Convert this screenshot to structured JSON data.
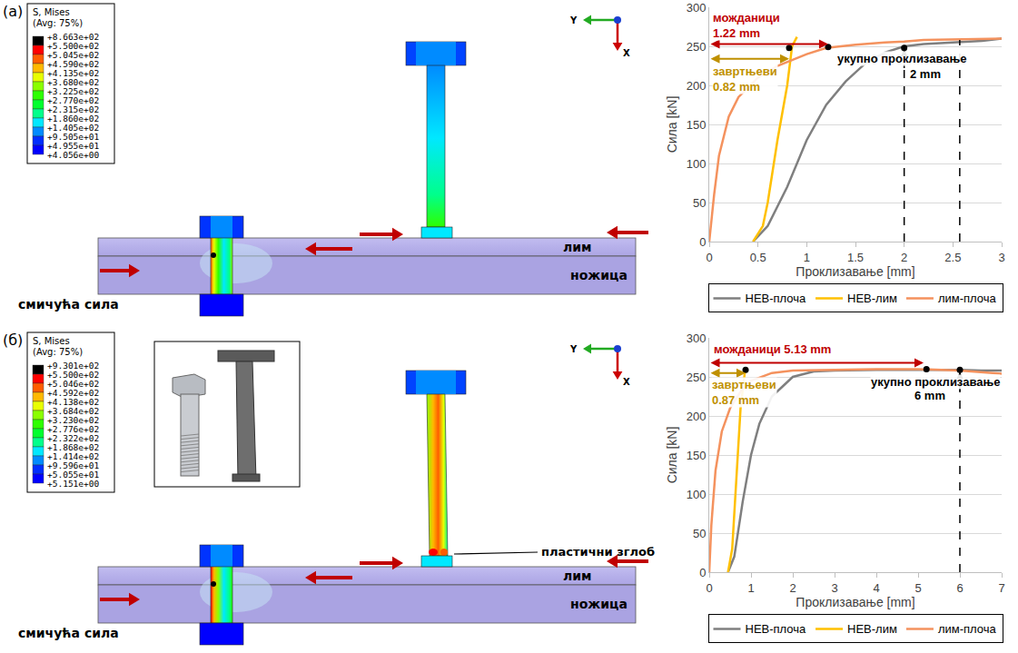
{
  "chart_data": [
    {
      "type": "line",
      "xlabel": "Проклизавање [mm]",
      "ylabel": "Сила [kN]",
      "xlim": [
        0,
        3
      ],
      "ylim": [
        0,
        300
      ],
      "xticks": [
        0,
        0.5,
        1,
        1.5,
        2,
        2.5,
        3
      ],
      "yticks": [
        0,
        50,
        100,
        150,
        200,
        250,
        300
      ],
      "grid": "y",
      "legend": "bottom",
      "series": [
        {
          "name": "НЕВ-плоча",
          "color": "#7f7f7f",
          "x": [
            0.45,
            0.6,
            0.8,
            1.0,
            1.2,
            1.4,
            1.6,
            1.8,
            2.0,
            2.2,
            2.5,
            2.8,
            3.0
          ],
          "values": [
            0,
            20,
            70,
            130,
            175,
            205,
            228,
            242,
            250,
            253,
            255,
            257,
            260
          ]
        },
        {
          "name": "НЕВ-лим",
          "color": "#ffc000",
          "x": [
            0.45,
            0.55,
            0.6,
            0.7,
            0.8,
            0.85,
            0.9
          ],
          "values": [
            0,
            20,
            50,
            130,
            200,
            250,
            262
          ]
        },
        {
          "name": "лим-плоча",
          "color": "#f4925e",
          "x": [
            0,
            0.05,
            0.1,
            0.2,
            0.3,
            0.5,
            0.7,
            1.0,
            1.2,
            1.5,
            1.8,
            2.0,
            2.2,
            2.5,
            3.0
          ],
          "values": [
            0,
            60,
            110,
            160,
            185,
            210,
            225,
            240,
            248,
            252,
            255,
            256,
            258,
            259,
            260
          ]
        }
      ],
      "points": {
        "x": [
          0.82,
          1.22,
          2
        ],
        "values": [
          248,
          249,
          248
        ],
        "color": "#000000",
        "marker": "circle"
      },
      "dimension_lines": [
        {
          "x0": 0,
          "x1": 1.22,
          "y": 253,
          "color": "#c00000"
        },
        {
          "x0": 0,
          "x1": 0.82,
          "y": 234,
          "color": "#bf9000"
        }
      ],
      "total_arrow": {
        "x": 2,
        "y0": 0,
        "y1": 246
      },
      "guides": [
        {
          "x": 2.57,
          "y0": 0,
          "y1": 258
        }
      ],
      "annotations": [
        {
          "lines": [
            "можданици",
            "1.22 mm"
          ],
          "color": "#c00000",
          "x": 0.03,
          "y": 277
        },
        {
          "lines": [
            "завртњеви",
            "0.82 mm"
          ],
          "color": "#bf9000",
          "x": 0.03,
          "y": 208
        },
        {
          "lines": [
            "укупно проклизавање"
          ],
          "color": "#000000",
          "x": 1.3,
          "y": 234
        },
        {
          "lines": [
            "2 mm"
          ],
          "color": "#000000",
          "x": 2.05,
          "y": 214
        }
      ]
    },
    {
      "type": "line",
      "xlabel": "Проклизавање [mm]",
      "ylabel": "Сила [kN]",
      "xlim": [
        0,
        7
      ],
      "ylim": [
        0,
        300
      ],
      "xticks": [
        0,
        1,
        2,
        3,
        4,
        5,
        6,
        7
      ],
      "yticks": [
        0,
        50,
        100,
        150,
        200,
        250,
        300
      ],
      "grid": "y",
      "legend": "bottom",
      "series": [
        {
          "name": "НЕВ-плоча",
          "color": "#7f7f7f",
          "x": [
            0.45,
            0.6,
            0.8,
            1.0,
            1.2,
            1.5,
            2.0,
            2.5,
            3,
            4,
            5,
            6,
            6.5,
            7
          ],
          "values": [
            0,
            20,
            90,
            150,
            190,
            225,
            250,
            257,
            258,
            259,
            259,
            259,
            258,
            258
          ]
        },
        {
          "name": "НЕВ-лим",
          "color": "#ffc000",
          "x": [
            0.45,
            0.55,
            0.65,
            0.75,
            0.85,
            0.9
          ],
          "values": [
            0,
            30,
            120,
            210,
            255,
            262
          ]
        },
        {
          "name": "лим-плоча",
          "color": "#f4925e",
          "x": [
            0,
            0.05,
            0.15,
            0.3,
            0.5,
            0.8,
            1.0,
            1.5,
            2,
            3,
            4,
            5,
            6,
            7
          ],
          "values": [
            0,
            60,
            130,
            180,
            210,
            235,
            245,
            255,
            258,
            259,
            260,
            260,
            258,
            254
          ]
        }
      ],
      "points": {
        "x": [
          0.87,
          5.2,
          6
        ],
        "values": [
          259,
          260,
          259
        ],
        "color": "#000000",
        "marker": "circle"
      },
      "dimension_lines": [
        {
          "x0": 0,
          "x1": 5.13,
          "y": 268,
          "color": "#c00000"
        },
        {
          "x0": 0,
          "x1": 0.87,
          "y": 255,
          "color": "#bf9000"
        }
      ],
      "total_arrow": {
        "x": 6,
        "y0": 0,
        "y1": 256
      },
      "annotations": [
        {
          "lines": [
            "можданици 5.13 mm"
          ],
          "color": "#c00000",
          "x": 0.08,
          "y": 285
        },
        {
          "lines": [
            "завртњеви",
            "0.87 mm"
          ],
          "color": "#bf9000",
          "x": 0.05,
          "y": 230
        },
        {
          "lines": [
            "укупно проклизавање"
          ],
          "color": "#000000",
          "x": 3.85,
          "y": 244
        },
        {
          "lines": [
            "6 mm"
          ],
          "color": "#000000",
          "x": 4.9,
          "y": 226
        }
      ]
    }
  ],
  "diagrams": [
    {
      "letter": "(a)",
      "legend_title": [
        "S, Mises",
        "(Avg: 75%)"
      ],
      "levels": [
        "+8.663e+02",
        "+5.500e+02",
        "+5.045e+02",
        "+4.590e+02",
        "+4.135e+02",
        "+3.680e+02",
        "+3.225e+02",
        "+2.770e+02",
        "+2.315e+02",
        "+1.860e+02",
        "+1.405e+02",
        "+9.505e+01",
        "+4.955e+01",
        "+4.056e+00"
      ],
      "labels": {
        "plate": "лим",
        "flange": "ножица",
        "force": "смичућа сила"
      },
      "axes": {
        "x": "X",
        "y": "Y"
      }
    },
    {
      "letter": "(б)",
      "legend_title": [
        "S, Mises",
        "(Avg: 75%)"
      ],
      "levels": [
        "+9.301e+02",
        "+5.500e+02",
        "+5.046e+02",
        "+4.592e+02",
        "+4.138e+02",
        "+3.684e+02",
        "+3.230e+02",
        "+2.776e+02",
        "+2.322e+02",
        "+1.868e+02",
        "+1.414e+02",
        "+9.596e+01",
        "+5.055e+01",
        "+5.151e+00"
      ],
      "labels": {
        "plate": "лим",
        "flange": "ножица",
        "force": "смичућа сила",
        "hinge": "пластични зглоб"
      },
      "axes": {
        "x": "X",
        "y": "Y"
      }
    }
  ]
}
